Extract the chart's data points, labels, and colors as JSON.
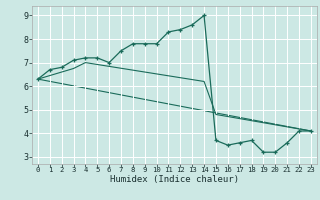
{
  "xlabel": "Humidex (Indice chaleur)",
  "bg_color": "#cce8e4",
  "grid_color": "#ffffff",
  "line_color": "#1a6b5a",
  "xlim": [
    -0.5,
    23.5
  ],
  "ylim": [
    2.7,
    9.4
  ],
  "xticks": [
    0,
    1,
    2,
    3,
    4,
    5,
    6,
    7,
    8,
    9,
    10,
    11,
    12,
    13,
    14,
    15,
    16,
    17,
    18,
    19,
    20,
    21,
    22,
    23
  ],
  "yticks": [
    3,
    4,
    5,
    6,
    7,
    8,
    9
  ],
  "curve1_x": [
    0,
    1,
    2,
    3,
    4,
    5,
    6,
    7,
    8,
    9,
    10,
    11,
    12,
    13,
    14,
    15,
    16,
    17,
    18,
    19,
    20,
    21,
    22,
    23
  ],
  "curve1_y": [
    6.3,
    6.7,
    6.8,
    7.1,
    7.2,
    7.2,
    7.0,
    7.5,
    7.8,
    7.8,
    7.8,
    8.3,
    8.4,
    8.6,
    9.0,
    3.7,
    3.5,
    3.6,
    3.7,
    3.2,
    3.2,
    3.6,
    4.1,
    4.1
  ],
  "curve2_x": [
    0,
    23
  ],
  "curve2_y": [
    6.3,
    4.1
  ],
  "curve3_x": [
    0,
    3,
    4,
    14,
    15,
    23
  ],
  "curve3_y": [
    6.3,
    6.75,
    7.0,
    6.2,
    4.8,
    4.1
  ]
}
